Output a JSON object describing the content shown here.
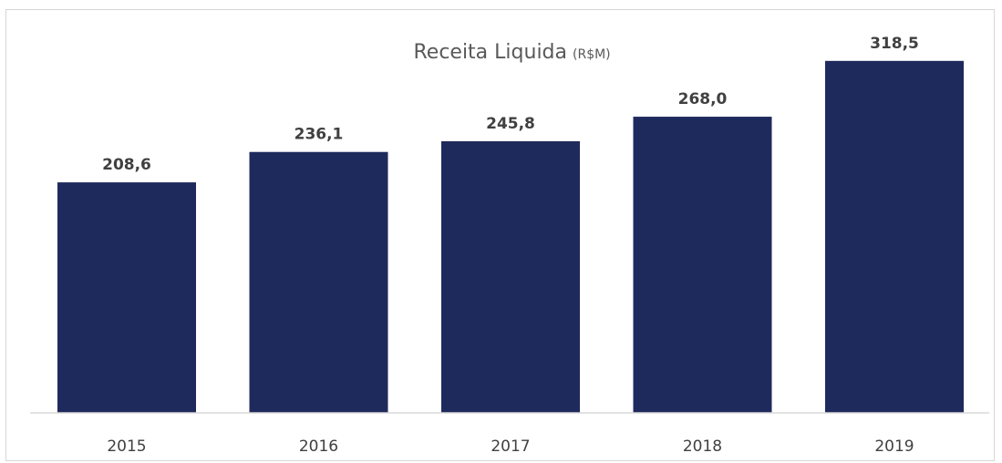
{
  "chart_data": {
    "type": "bar",
    "title": "Receita Liquida",
    "title_unit": "(R$M)",
    "xlabel": "",
    "ylabel": "",
    "categories": [
      "2015",
      "2016",
      "2017",
      "2018",
      "2019"
    ],
    "values": [
      208.6,
      236.1,
      245.8,
      268.0,
      318.5
    ],
    "value_labels": [
      "208,6",
      "236,1",
      "245,8",
      "268,0",
      "318,5"
    ],
    "ylim": [
      0,
      360
    ],
    "grid": false,
    "legend": "none",
    "bar_color": "#1f2a5c",
    "axis_color": "#d9d9d9"
  }
}
